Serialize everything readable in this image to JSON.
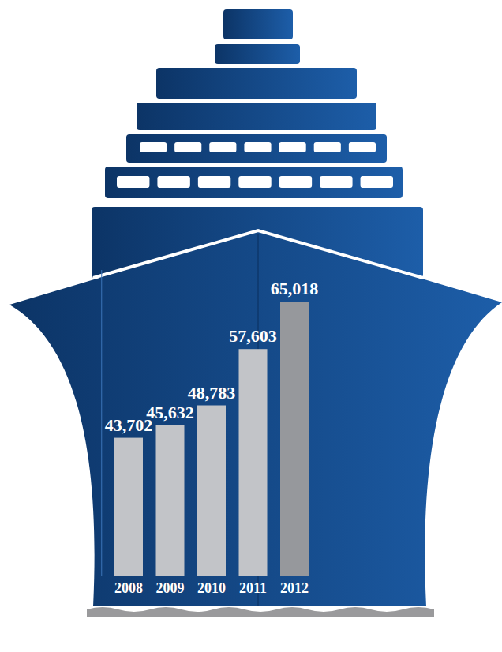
{
  "chart_data": {
    "type": "bar",
    "categories": [
      "2008",
      "2009",
      "2010",
      "2011",
      "2012"
    ],
    "values": [
      43702,
      45632,
      48783,
      57603,
      65018
    ],
    "value_labels": [
      "43,702",
      "45,632",
      "48,783",
      "57,603",
      "65,018"
    ],
    "colors": [
      "#c2c4c8",
      "#c2c4c8",
      "#c2c4c8",
      "#c2c4c8",
      "#96989c"
    ],
    "ylim": [
      22000,
      70000
    ],
    "data_labels": true,
    "tick_labels": "x",
    "grid": false
  }
}
